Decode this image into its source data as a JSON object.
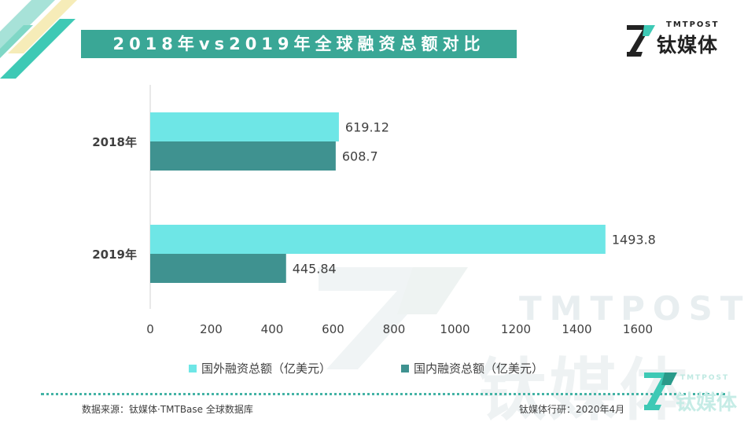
{
  "title": "2018年vs2019年全球融资总额对比",
  "logo": {
    "en": "TMTPOST",
    "cn": "钛媒体"
  },
  "watermark": {
    "en": "TMTPOST",
    "cn": "钛媒体"
  },
  "colors": {
    "accent": "#3aa796",
    "foreign": "#6ee6e6",
    "domestic": "#3f9290"
  },
  "chart_data": {
    "type": "bar",
    "orientation": "horizontal",
    "categories": [
      "2018年",
      "2019年"
    ],
    "series": [
      {
        "name": "国外融资总额（亿美元）",
        "values": [
          619.12,
          1493.8
        ],
        "labels": [
          "619.12",
          "1493.8"
        ]
      },
      {
        "name": "国内融资总额（亿美元）",
        "values": [
          608.7,
          445.84
        ],
        "labels": [
          "608.7",
          "445.84"
        ]
      }
    ],
    "xticks": [
      "0",
      "200",
      "400",
      "600",
      "800",
      "1000",
      "1200",
      "1400",
      "1600"
    ],
    "xlim": [
      0,
      1600
    ],
    "title": "",
    "xlabel": "",
    "ylabel": "",
    "legend": "bottom"
  },
  "footer": {
    "source": "数据来源：钛媒体·TMTBase 全球数据库",
    "research": "钛媒体行研：2020年4月"
  }
}
